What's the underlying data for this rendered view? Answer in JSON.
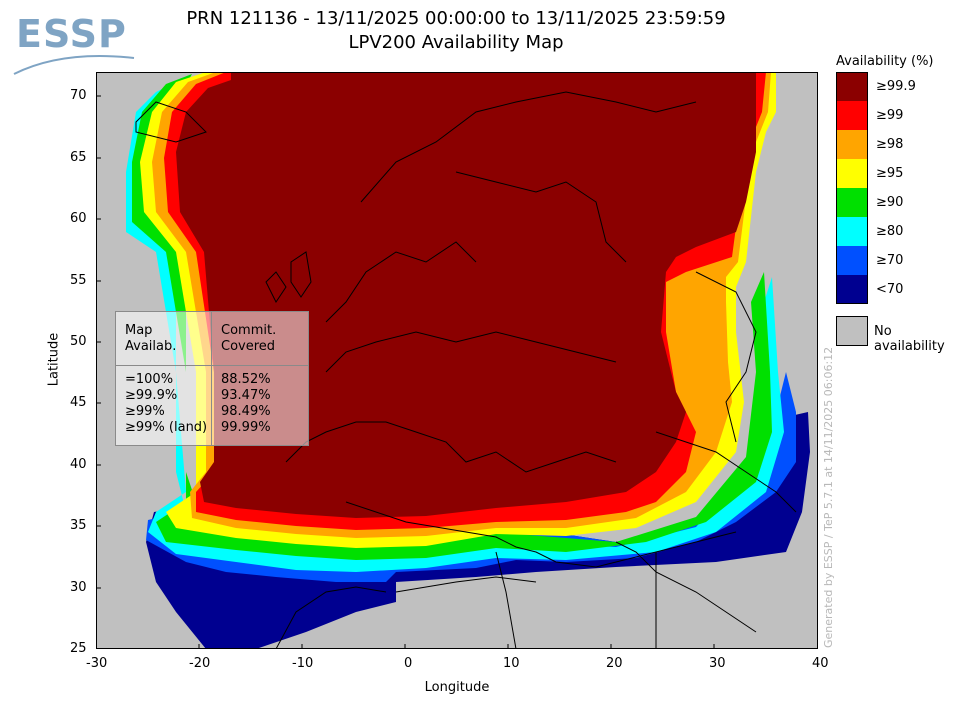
{
  "logo": {
    "text": "ESSP"
  },
  "title": {
    "line1": "PRN 121136 - 13/11/2025 00:00:00 to 13/11/2025 23:59:59",
    "line2": "LPV200 Availability Map"
  },
  "axes": {
    "xlabel": "Longitude",
    "ylabel": "Latitude",
    "xticks": [
      "-30",
      "-20",
      "-10",
      "0",
      "10",
      "20",
      "30",
      "40"
    ],
    "yticks": [
      "70",
      "65",
      "60",
      "55",
      "50",
      "45",
      "40",
      "35",
      "30",
      "25"
    ],
    "xrange": [
      -30,
      40
    ],
    "yrange": [
      25,
      72
    ]
  },
  "legend": {
    "title": "Availability (%)",
    "items": [
      {
        "label": "≥99.9",
        "color": "#8b0000"
      },
      {
        "label": "≥99",
        "color": "#ff0000"
      },
      {
        "label": "≥98",
        "color": "#ffa500"
      },
      {
        "label": "≥95",
        "color": "#ffff00"
      },
      {
        "label": "≥90",
        "color": "#00e000"
      },
      {
        "label": "≥80",
        "color": "#00ffff"
      },
      {
        "label": "≥70",
        "color": "#0050ff"
      },
      {
        "label": "<70",
        "color": "#000090"
      }
    ],
    "no_availability": {
      "label": "No availability",
      "color": "#c0c0c0"
    }
  },
  "stats_table": {
    "header": [
      "Map\nAvailab.",
      "Commit.\nCovered"
    ],
    "rows": [
      [
        "=100%",
        "88.52%"
      ],
      [
        "≥99.9%",
        "93.47%"
      ],
      [
        "≥99%",
        "98.49%"
      ],
      [
        "≥99% (land)",
        "99.99%"
      ]
    ]
  },
  "credit": "Generated by ESSP / TeP 5.7.1 at 14/11/2025 06:06:12"
}
